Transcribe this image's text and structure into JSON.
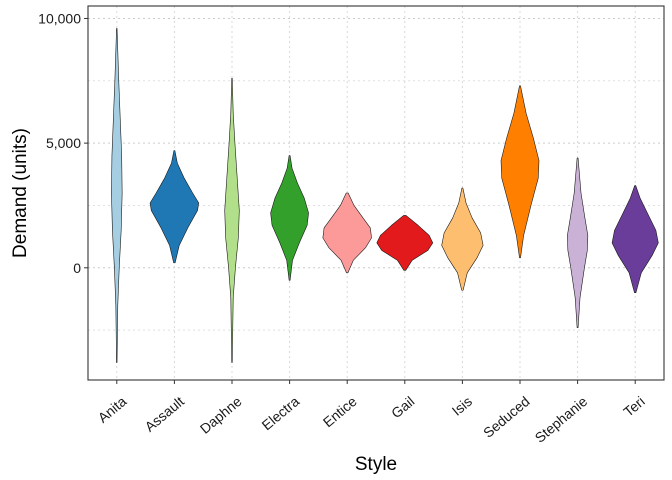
{
  "chart_data": {
    "type": "violin",
    "xlabel": "Style",
    "ylabel": "Demand (units)",
    "y_ticks": [
      0,
      5000,
      10000
    ],
    "y_tick_labels": [
      "0",
      "5,000",
      "10,000"
    ],
    "ylim": [
      -4500,
      10500
    ],
    "grid": "dotted major and minor, both axes",
    "legend": "none",
    "categories": [
      "Anita",
      "Assault",
      "Daphne",
      "Electra",
      "Entice",
      "Gail",
      "Isis",
      "Seduced",
      "Stephanie",
      "Teri"
    ],
    "violins": [
      {
        "style": "Anita",
        "color": "#A6CEE3",
        "min": -3800,
        "max": 9600,
        "profile": [
          [
            -3800,
            0.01
          ],
          [
            -1500,
            0.04
          ],
          [
            0,
            0.1
          ],
          [
            1500,
            0.18
          ],
          [
            3000,
            0.22
          ],
          [
            4500,
            0.2
          ],
          [
            6000,
            0.14
          ],
          [
            7500,
            0.08
          ],
          [
            9600,
            0.01
          ]
        ]
      },
      {
        "style": "Assault",
        "color": "#1F78B4",
        "min": 200,
        "max": 4700,
        "profile": [
          [
            200,
            0.03
          ],
          [
            900,
            0.2
          ],
          [
            1600,
            0.55
          ],
          [
            2300,
            0.95
          ],
          [
            2600,
            1.0
          ],
          [
            3000,
            0.75
          ],
          [
            3600,
            0.4
          ],
          [
            4200,
            0.12
          ],
          [
            4700,
            0.02
          ]
        ]
      },
      {
        "style": "Daphne",
        "color": "#B2DF8A",
        "min": -3800,
        "max": 7600,
        "profile": [
          [
            -3800,
            0.01
          ],
          [
            -1200,
            0.05
          ],
          [
            0,
            0.14
          ],
          [
            1200,
            0.26
          ],
          [
            2300,
            0.3
          ],
          [
            3500,
            0.22
          ],
          [
            5000,
            0.12
          ],
          [
            6200,
            0.05
          ],
          [
            7600,
            0.01
          ]
        ]
      },
      {
        "style": "Electra",
        "color": "#33A02C",
        "min": -500,
        "max": 4500,
        "profile": [
          [
            -500,
            0.02
          ],
          [
            300,
            0.12
          ],
          [
            1000,
            0.4
          ],
          [
            1700,
            0.72
          ],
          [
            2200,
            0.78
          ],
          [
            2800,
            0.6
          ],
          [
            3400,
            0.32
          ],
          [
            4000,
            0.1
          ],
          [
            4500,
            0.02
          ]
        ]
      },
      {
        "style": "Entice",
        "color": "#FB9A99",
        "min": -200,
        "max": 3000,
        "profile": [
          [
            -200,
            0.03
          ],
          [
            300,
            0.25
          ],
          [
            800,
            0.75
          ],
          [
            1200,
            1.0
          ],
          [
            1600,
            0.95
          ],
          [
            2000,
            0.65
          ],
          [
            2500,
            0.28
          ],
          [
            3000,
            0.04
          ]
        ]
      },
      {
        "style": "Gail",
        "color": "#E31A1C",
        "min": -100,
        "max": 2100,
        "profile": [
          [
            -100,
            0.04
          ],
          [
            300,
            0.3
          ],
          [
            700,
            0.95
          ],
          [
            1000,
            1.15
          ],
          [
            1300,
            1.0
          ],
          [
            1700,
            0.55
          ],
          [
            2100,
            0.05
          ]
        ]
      },
      {
        "style": "Isis",
        "color": "#FDBF6F",
        "min": -900,
        "max": 3200,
        "profile": [
          [
            -900,
            0.03
          ],
          [
            -200,
            0.2
          ],
          [
            400,
            0.6
          ],
          [
            900,
            0.85
          ],
          [
            1400,
            0.75
          ],
          [
            2000,
            0.4
          ],
          [
            2600,
            0.15
          ],
          [
            3200,
            0.02
          ]
        ]
      },
      {
        "style": "Seduced",
        "color": "#FF7F00",
        "min": 400,
        "max": 7300,
        "profile": [
          [
            400,
            0.02
          ],
          [
            1300,
            0.15
          ],
          [
            2500,
            0.45
          ],
          [
            3600,
            0.75
          ],
          [
            4300,
            0.78
          ],
          [
            5200,
            0.55
          ],
          [
            6200,
            0.25
          ],
          [
            7300,
            0.02
          ]
        ]
      },
      {
        "style": "Stephanie",
        "color": "#CAB2D6",
        "min": -2400,
        "max": 4400,
        "profile": [
          [
            -2400,
            0.02
          ],
          [
            -1200,
            0.1
          ],
          [
            0,
            0.28
          ],
          [
            700,
            0.4
          ],
          [
            1300,
            0.42
          ],
          [
            2000,
            0.3
          ],
          [
            3000,
            0.14
          ],
          [
            4400,
            0.02
          ]
        ]
      },
      {
        "style": "Teri",
        "color": "#6A3D9A",
        "min": -1000,
        "max": 3300,
        "profile": [
          [
            -1000,
            0.03
          ],
          [
            -200,
            0.25
          ],
          [
            500,
            0.7
          ],
          [
            1000,
            0.95
          ],
          [
            1500,
            0.85
          ],
          [
            2200,
            0.5
          ],
          [
            2800,
            0.2
          ],
          [
            3300,
            0.02
          ]
        ]
      }
    ]
  }
}
